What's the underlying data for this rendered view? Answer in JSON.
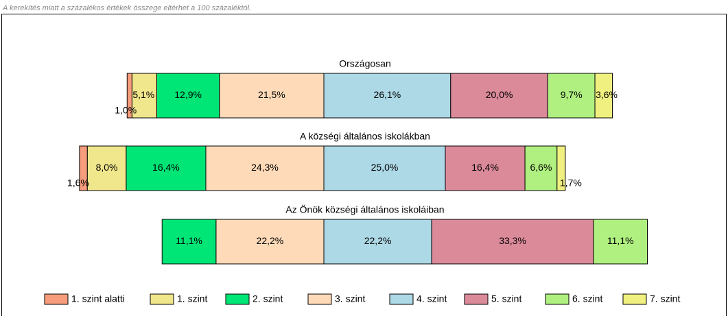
{
  "chart_data": {
    "type": "diverging-bar",
    "note": "A kerekítés miatt a  százalékos értékek összege eltérhet a 100 százaléktól.",
    "categories": [
      "Országosan",
      "A községi általános iskolákban",
      "Az Önök községi általános iskoláiban"
    ],
    "series": [
      {
        "name": "1. szint alatti",
        "color": "#f79c7c",
        "values": [
          1.0,
          1.6,
          null
        ],
        "value_labels": [
          "1,0%",
          "1,6%",
          null
        ]
      },
      {
        "name": "1. szint",
        "color": "#f0e68c",
        "values": [
          5.1,
          8.0,
          null
        ],
        "value_labels": [
          "5,1%",
          "8,0%",
          null
        ]
      },
      {
        "name": "2. szint",
        "color": "#00e676",
        "values": [
          12.9,
          16.4,
          11.1
        ],
        "value_labels": [
          "12,9%",
          "16,4%",
          "11,1%"
        ]
      },
      {
        "name": "3. szint",
        "color": "#ffdab9",
        "values": [
          21.5,
          24.3,
          22.2
        ],
        "value_labels": [
          "21,5%",
          "24,3%",
          "22,2%"
        ]
      },
      {
        "name": "4. szint",
        "color": "#add8e6",
        "values": [
          26.1,
          25.0,
          22.2
        ],
        "value_labels": [
          "26,1%",
          "25,0%",
          "22,2%"
        ]
      },
      {
        "name": "5. szint",
        "color": "#db8a9a",
        "values": [
          20.0,
          16.4,
          33.3
        ],
        "value_labels": [
          "20,0%",
          "16,4%",
          "33,3%"
        ]
      },
      {
        "name": "6. szint",
        "color": "#b0f080",
        "values": [
          9.7,
          6.6,
          11.1
        ],
        "value_labels": [
          "9,7%",
          "6,6%",
          "11,1%"
        ]
      },
      {
        "name": "7. szint",
        "color": "#f0f080",
        "values": [
          3.6,
          1.7,
          null
        ],
        "value_labels": [
          "3,6%",
          "1,7%",
          null
        ]
      }
    ]
  }
}
